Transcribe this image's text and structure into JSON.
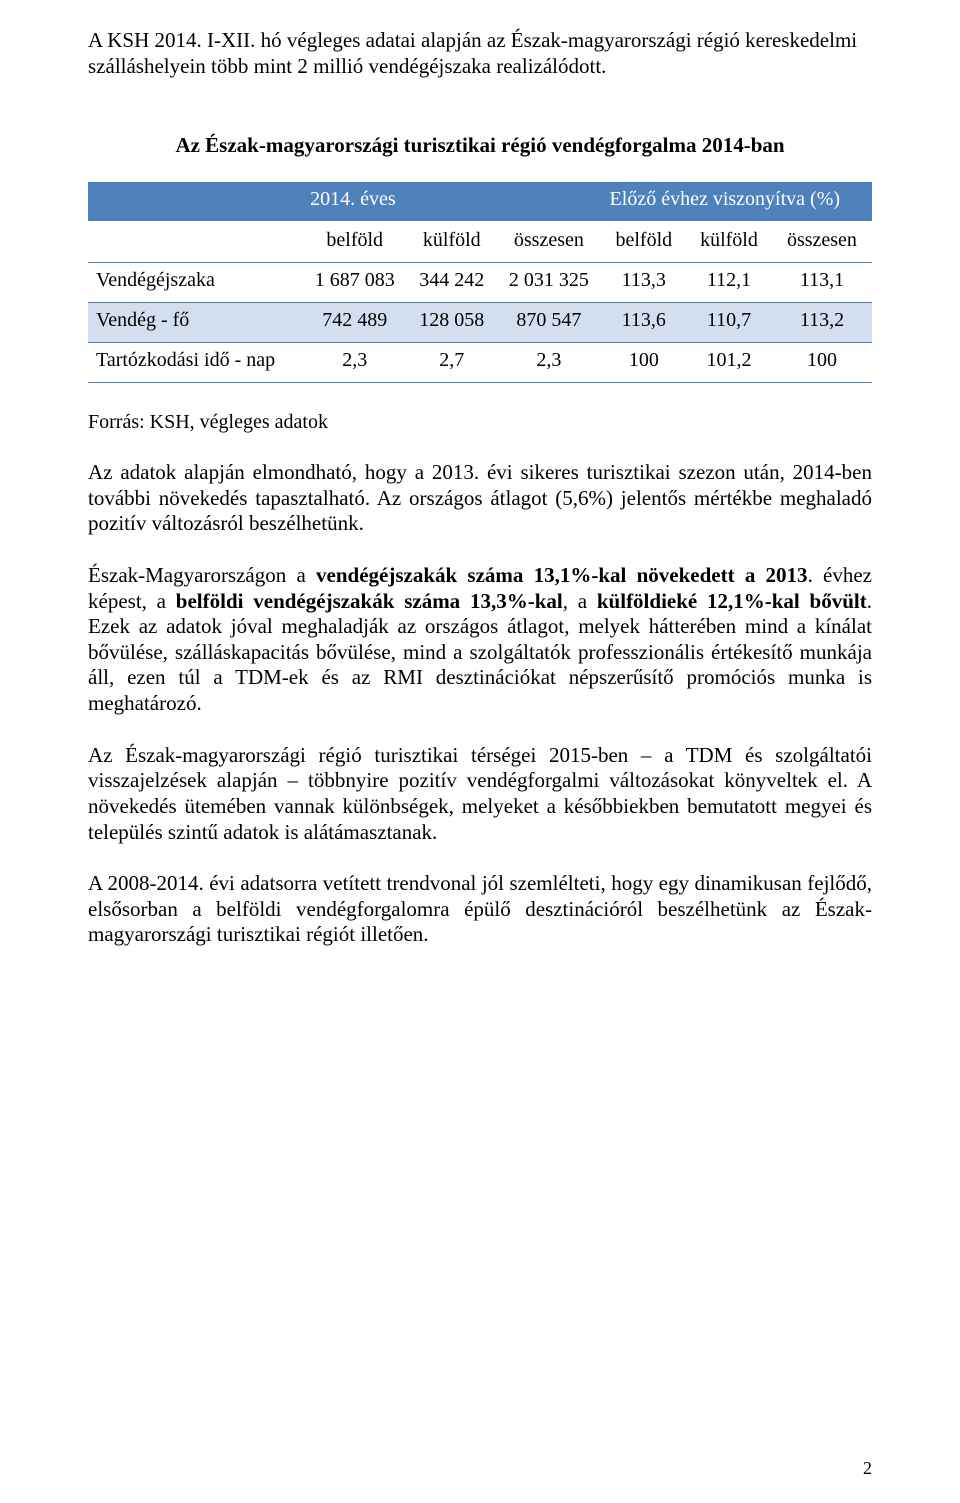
{
  "intro": "A KSH 2014. I-XII. hó végleges adatai alapján az Észak-magyarországi régió kereskedelmi szálláshelyein  több mint 2 millió vendégéjszaka realizálódott.",
  "table_title": "Az Észak-magyarországi turisztikai régió vendégforgalma 2014-ban",
  "table": {
    "group_headers": {
      "left": "2014. éves",
      "right": "Előző évhez viszonyítva (%)"
    },
    "sub_headers": [
      "belföld",
      "külföld",
      "összesen",
      "belföld",
      "külföld",
      "összesen"
    ],
    "rows": [
      {
        "label": "Vendégéjszaka",
        "cells": [
          "1 687 083",
          "344 242",
          "2 031 325",
          "113,3",
          "112,1",
          "113,1"
        ]
      },
      {
        "label": "Vendég - fő",
        "cells": [
          "742 489",
          "128 058",
          "870 547",
          "113,6",
          "110,7",
          "113,2"
        ]
      },
      {
        "label": "Tartózkodási idő - nap",
        "cells": [
          "2,3",
          "2,7",
          "2,3",
          "100",
          "101,2",
          "100"
        ]
      }
    ],
    "header_bg": "#4f81bd",
    "row_alt_bg": "#d3deef",
    "border_color": "#4f81bd"
  },
  "source": "Forrás: KSH, végleges  adatok",
  "p1": "Az adatok alapján elmondható, hogy a 2013. évi sikeres turisztikai szezon után, 2014-ben további növekedés tapasztalható. Az országos átlagot (5,6%) jelentős mértékbe meghaladó pozitív változásról beszélhetünk.",
  "p2_a": "Észak-Magyarországon a ",
  "p2_b_bold": "vendégéjszakák száma 13,1%-kal növekedett a 2013",
  "p2_c": ". évhez képest, a ",
  "p2_d_bold": "belföldi vendégéjszakák száma 13,3%-kal",
  "p2_e": ", a ",
  "p2_f_bold": "külföldieké 12,1%-kal bővült",
  "p2_g": ". Ezek az adatok jóval meghaladják az országos átlagot, melyek hátterében mind a kínálat bővülése, szálláskapacitás bővülése, mind a szolgáltatók professzionális értékesítő munkája áll, ezen túl a TDM-ek és az RMI desztinációkat népszerűsítő promóciós munka is meghatározó.",
  "p3": "Az Észak-magyarországi régió turisztikai térségei 2015-ben – a TDM és szolgáltatói visszajelzések alapján – többnyire pozitív vendégforgalmi változásokat könyveltek el.  A növekedés ütemében vannak különbségek, melyeket a későbbiekben bemutatott megyei és település szintű adatok is alátámasztanak.",
  "p4": "A 2008-2014. évi adatsorra vetített trendvonal jól szemlélteti, hogy egy dinamikusan fejlődő, elsősorban a belföldi vendégforgalomra épülő desztinációról beszélhetünk az Észak-magyarországi turisztikai régiót illetően.",
  "page_number": "2"
}
